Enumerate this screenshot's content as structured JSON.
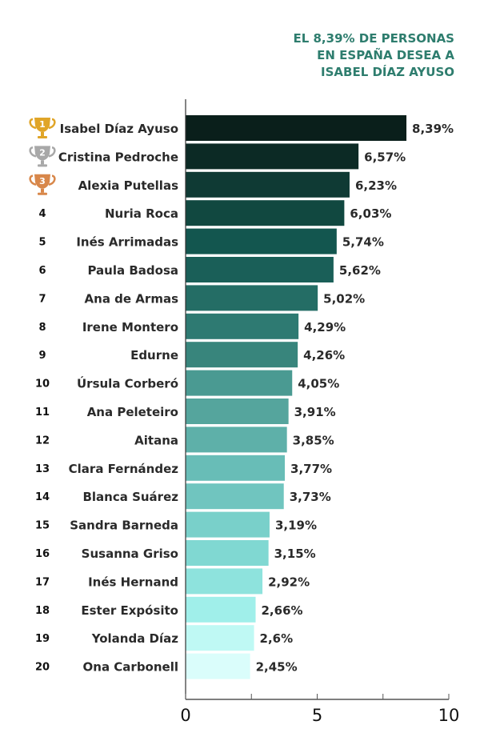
{
  "chart_data": {
    "type": "bar",
    "orientation": "horizontal",
    "title": "EL 8,39% DE PERSONAS EN ESPAÑA DESEA A ISABEL DÍAZ AYUSO",
    "title_lines": [
      "EL 8,39% DE PERSONAS",
      "EN ESPAÑA DESEA A",
      "ISABEL DÍAZ AYUSO"
    ],
    "categories": [
      "Isabel Díaz Ayuso",
      "Cristina Pedroche",
      "Alexia Putellas",
      "Nuria Roca",
      "Inés Arrimadas",
      "Paula Badosa",
      "Ana de Armas",
      "Irene Montero",
      "Edurne",
      "Úrsula Corberó",
      "Ana Peleteiro",
      "Aitana",
      "Clara Fernández",
      "Blanca Suárez",
      "Sandra Barneda",
      "Susanna Griso",
      "Inés Hernand",
      "Ester Expósito",
      "Yolanda Díaz",
      "Ona Carbonell"
    ],
    "ranks": [
      "1",
      "2",
      "3",
      "4",
      "5",
      "6",
      "7",
      "8",
      "9",
      "10",
      "11",
      "12",
      "13",
      "14",
      "15",
      "16",
      "17",
      "18",
      "19",
      "20"
    ],
    "values": [
      8.39,
      6.57,
      6.23,
      6.03,
      5.74,
      5.62,
      5.02,
      4.29,
      4.26,
      4.05,
      3.91,
      3.85,
      3.77,
      3.73,
      3.19,
      3.15,
      2.92,
      2.66,
      2.6,
      2.45
    ],
    "value_labels": [
      "8,39%",
      "6,57%",
      "6,23%",
      "6,03%",
      "5,74%",
      "5,62%",
      "5,02%",
      "4,29%",
      "4,26%",
      "4,05%",
      "3,91%",
      "3,85%",
      "3,77%",
      "3,73%",
      "3,19%",
      "3,15%",
      "2,92%",
      "2,66%",
      "2,6%",
      "2,45%"
    ],
    "colors": [
      "#0a1f1b",
      "#0c2a25",
      "#0f3a34",
      "#114840",
      "#13564f",
      "#1a5f58",
      "#246d65",
      "#2e7a72",
      "#38857c",
      "#4a9a92",
      "#55a59d",
      "#5eb0a9",
      "#68bdb7",
      "#70c5bf",
      "#79d0ca",
      "#80d8d2",
      "#8ee3dd",
      "#a0efea",
      "#bff9f4",
      "#dafdfb"
    ],
    "trophy_colors": {
      "1": "#e0a528",
      "2": "#a8a8a8",
      "3": "#d8874a"
    },
    "xlim": [
      0,
      10
    ],
    "xticks": [
      0,
      5,
      10
    ],
    "minor_ticks": [
      2.5,
      7.5
    ],
    "title_color": "#2e7d6e",
    "grid": false
  }
}
